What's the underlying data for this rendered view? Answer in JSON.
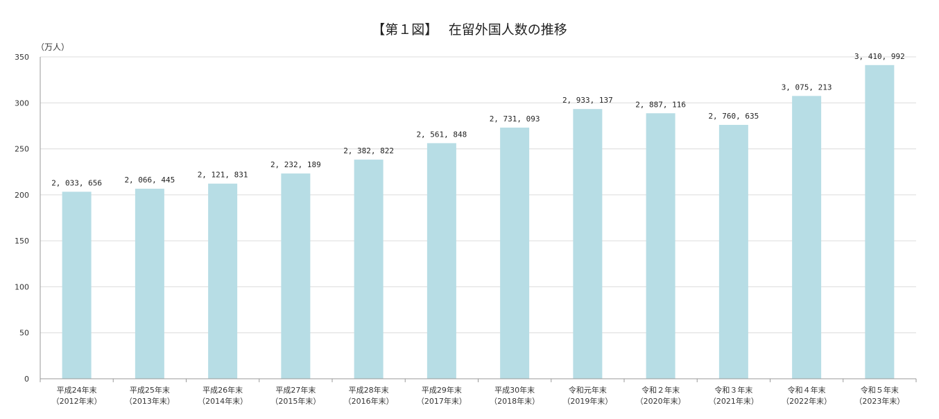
{
  "chart_data": {
    "type": "bar",
    "title": "【第１図】　 在留外国人数の推移",
    "unit_label": "（万人）",
    "ylim": [
      0,
      350
    ],
    "yticks": [
      0,
      50,
      100,
      150,
      200,
      250,
      300,
      350
    ],
    "grid": true,
    "legend": "none",
    "bar_color": "#b7dde5",
    "categories": [
      [
        "平成24年末",
        "（2012年末）"
      ],
      [
        "平成25年末",
        "（2013年末）"
      ],
      [
        "平成26年末",
        "（2014年末）"
      ],
      [
        "平成27年末",
        "（2015年末）"
      ],
      [
        "平成28年末",
        "（2016年末）"
      ],
      [
        "平成29年末",
        "（2017年末）"
      ],
      [
        "平成30年末",
        "（2018年末）"
      ],
      [
        "令和元年末",
        "（2019年末）"
      ],
      [
        "令和２年末",
        "（2020年末）"
      ],
      [
        "令和３年末",
        "（2021年末）"
      ],
      [
        "令和４年末",
        "（2022年末）"
      ],
      [
        "令和５年末",
        "（2023年末）"
      ]
    ],
    "values": [
      203.3656,
      206.6445,
      212.1831,
      223.2189,
      238.2822,
      256.1848,
      273.1093,
      293.3137,
      288.7116,
      276.0635,
      307.5213,
      341.0992
    ],
    "data_labels": [
      "2, 033, 656",
      "2, 066, 445",
      "2, 121, 831",
      "2, 232, 189",
      "2, 382, 822",
      "2, 561, 848",
      "2, 731, 093",
      "2, 933, 137",
      "2, 887, 116",
      "2, 760, 635",
      "3, 075, 213",
      "3, 410, 992"
    ]
  }
}
